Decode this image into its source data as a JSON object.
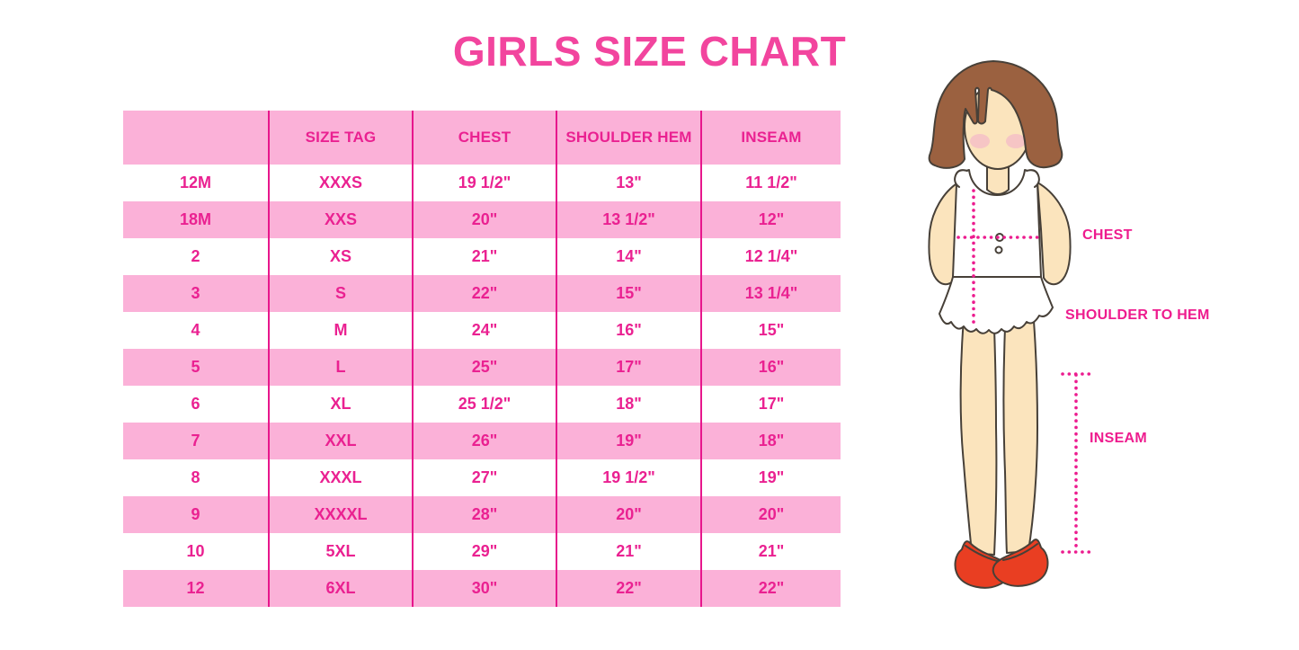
{
  "title": "GIRLS SIZE CHART",
  "chart_data": {
    "type": "table",
    "title": "GIRLS SIZE CHART",
    "columns": [
      "",
      "SIZE TAG",
      "CHEST",
      "SHOULDER HEM",
      "INSEAM"
    ],
    "rows": [
      [
        "12M",
        "XXXS",
        "19 1/2\"",
        "13\"",
        "11 1/2\""
      ],
      [
        "18M",
        "XXS",
        "20\"",
        "13 1/2\"",
        "12\""
      ],
      [
        "2",
        "XS",
        "21\"",
        "14\"",
        "12 1/4\""
      ],
      [
        "3",
        "S",
        "22\"",
        "15\"",
        "13 1/4\""
      ],
      [
        "4",
        "M",
        "24\"",
        "16\"",
        "15\""
      ],
      [
        "5",
        "L",
        "25\"",
        "17\"",
        "16\""
      ],
      [
        "6",
        "XL",
        "25 1/2\"",
        "18\"",
        "17\""
      ],
      [
        "7",
        "XXL",
        "26\"",
        "19\"",
        "18\""
      ],
      [
        "8",
        "XXXL",
        "27\"",
        "19 1/2\"",
        "19\""
      ],
      [
        "9",
        "XXXXL",
        "28\"",
        "20\"",
        "20\""
      ],
      [
        "10",
        "5XL",
        "29\"",
        "21\"",
        "21\""
      ],
      [
        "12",
        "6XL",
        "30\"",
        "22\"",
        "22\""
      ]
    ],
    "layout": {
      "header_background": "#FBB1D8",
      "alt_row_background": "#FBB1D8",
      "grid": "vertical-only"
    }
  },
  "diagram": {
    "figure": "girl body measurement illustration",
    "labels": {
      "chest": "CHEST",
      "shoulder_to_hem": "SHOULDER TO HEM",
      "inseam": "INSEAM"
    }
  },
  "colors": {
    "title_pink": "#F2459E",
    "table_text_magenta": "#EA2191",
    "grid_line_magenta": "#E7168C",
    "row_pink": "#FBB1D8",
    "dotted_line_magenta": "#EC1C8F",
    "hair_brown": "#9B6140",
    "skin": "#FBE4BD",
    "shoe_red": "#E93E22"
  }
}
